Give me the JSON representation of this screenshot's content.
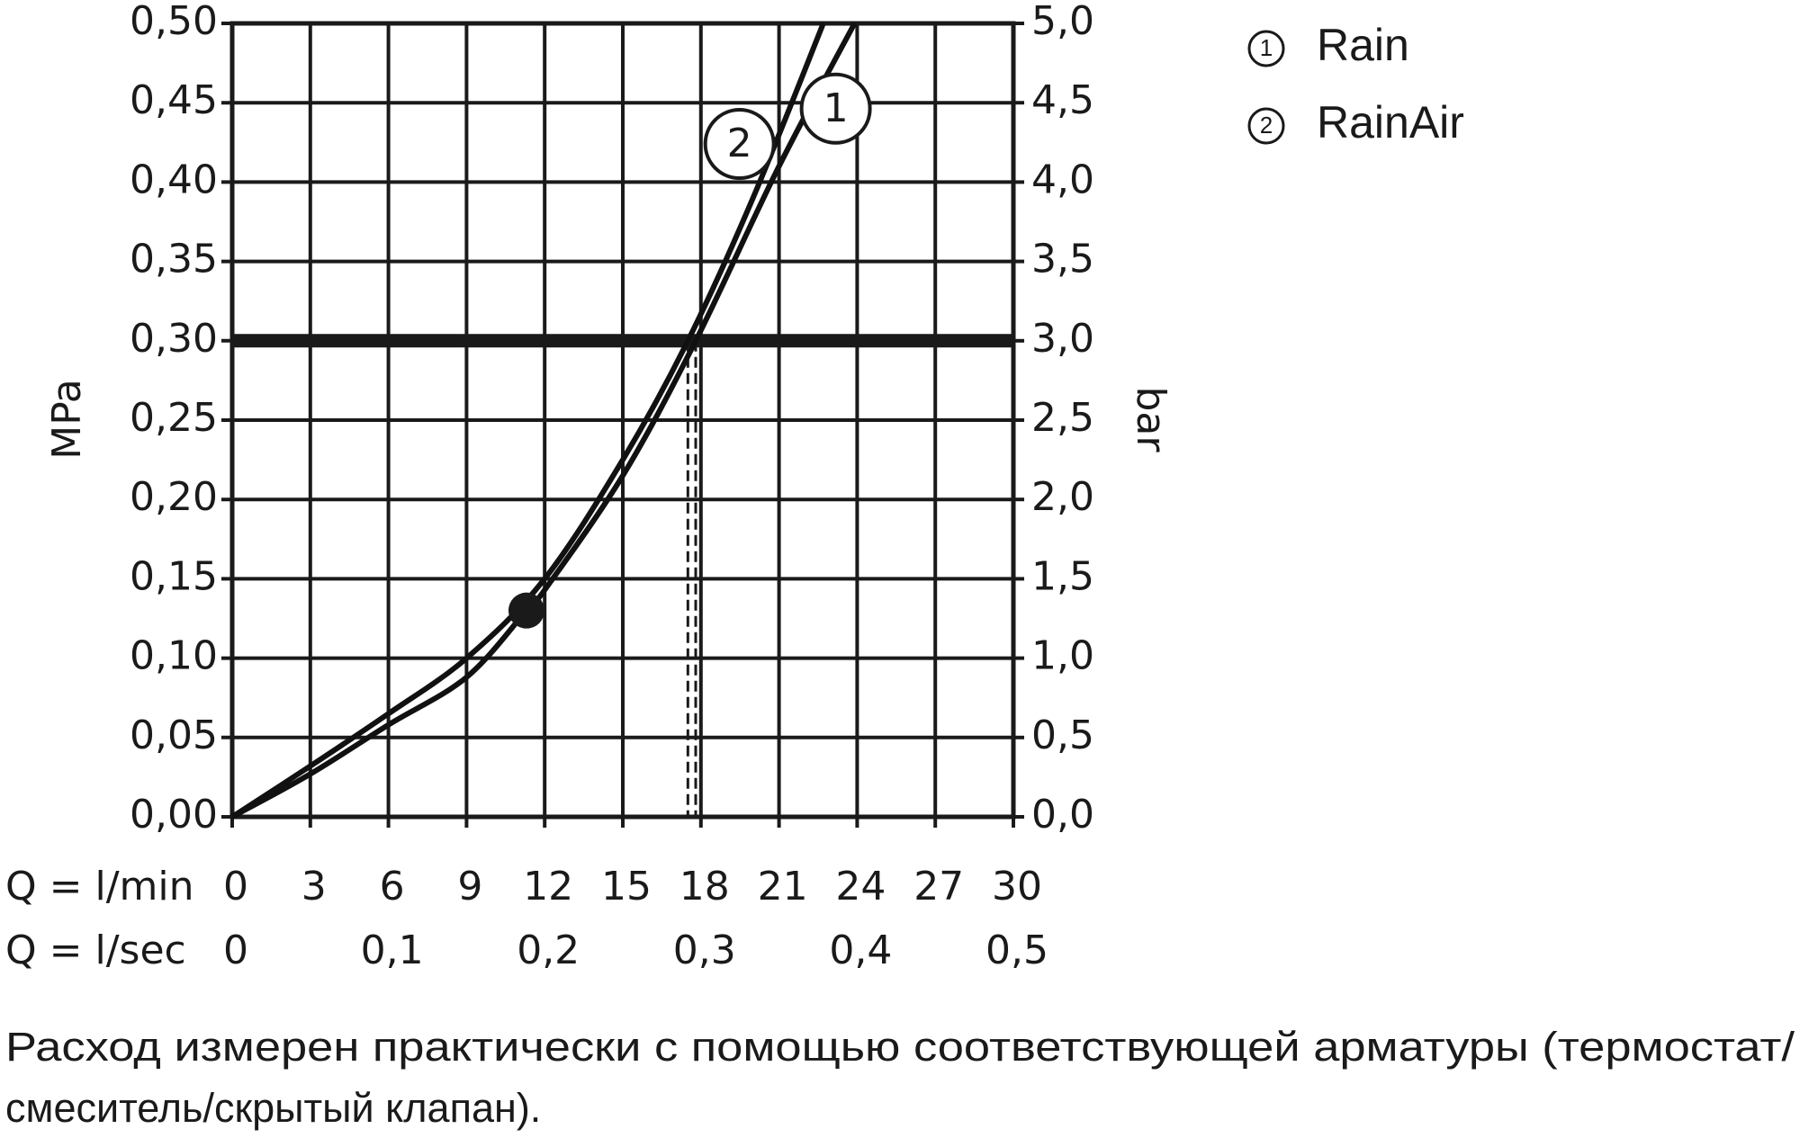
{
  "chart_data": {
    "type": "line",
    "xlabel": "Q = l/min",
    "x2label": "Q = l/sec",
    "ylabel": "MPa",
    "y2label": "bar",
    "xlim": [
      0,
      30
    ],
    "xticks": [
      0,
      3,
      6,
      9,
      12,
      15,
      18,
      21,
      24,
      27,
      30
    ],
    "x2lim": [
      0,
      0.5
    ],
    "x2ticks": [
      0,
      {
        "value": 0.1,
        "label": "0,1"
      },
      {
        "value": 0.2,
        "label": "0,2"
      },
      {
        "value": 0.3,
        "label": "0,3"
      },
      {
        "value": 0.4,
        "label": "0,4"
      },
      {
        "value": 0.5,
        "label": "0,5"
      }
    ],
    "ylim": [
      0,
      0.5
    ],
    "yticks": [
      {
        "value": 0,
        "label": "0,00"
      },
      {
        "value": 0.05,
        "label": "0,05"
      },
      {
        "value": 0.1,
        "label": "0,10"
      },
      {
        "value": 0.15,
        "label": "0,15"
      },
      {
        "value": 0.2,
        "label": "0,20"
      },
      {
        "value": 0.25,
        "label": "0,25"
      },
      {
        "value": 0.3,
        "label": "0,30"
      },
      {
        "value": 0.35,
        "label": "0,35"
      },
      {
        "value": 0.4,
        "label": "0,40"
      },
      {
        "value": 0.45,
        "label": "0,45"
      },
      {
        "value": 0.5,
        "label": "0,50"
      }
    ],
    "y2lim": [
      0,
      5
    ],
    "y2ticks": [
      {
        "value": 0,
        "label": "0,0"
      },
      {
        "value": 0.5,
        "label": "0,5"
      },
      {
        "value": 1,
        "label": "1,0"
      },
      {
        "value": 1.5,
        "label": "1,5"
      },
      {
        "value": 2,
        "label": "2,0"
      },
      {
        "value": 2.5,
        "label": "2,5"
      },
      {
        "value": 3,
        "label": "3,0"
      },
      {
        "value": 3.5,
        "label": "3,5"
      },
      {
        "value": 4,
        "label": "4,0"
      },
      {
        "value": 4.5,
        "label": "4,5"
      },
      {
        "value": 5,
        "label": "5,0"
      }
    ],
    "grid": true,
    "reference_y": 0.3,
    "reference_x": [
      17.5,
      17.8
    ],
    "point": {
      "x": 11.3,
      "y": 0.13
    },
    "series": [
      {
        "name": "Rain",
        "label": "1",
        "color": "#111111",
        "x": [
          0,
          3,
          6,
          9,
          11.3,
          12,
          15,
          17.8,
          21,
          23.9
        ],
        "values": [
          0,
          0.027,
          0.058,
          0.088,
          0.13,
          0.143,
          0.215,
          0.3,
          0.41,
          0.5
        ]
      },
      {
        "name": "RainAir",
        "label": "2",
        "color": "#111111",
        "x": [
          0,
          3,
          6,
          9,
          12,
          15,
          17.5,
          20,
          22.7
        ],
        "values": [
          0,
          0.032,
          0.065,
          0.1,
          0.15,
          0.225,
          0.3,
          0.39,
          0.5
        ]
      }
    ],
    "note_lines": [
      "Расход измерен практически с помощью соответствующей арматуры (термостат/",
      "смеситель/скрытый клапан)."
    ]
  }
}
